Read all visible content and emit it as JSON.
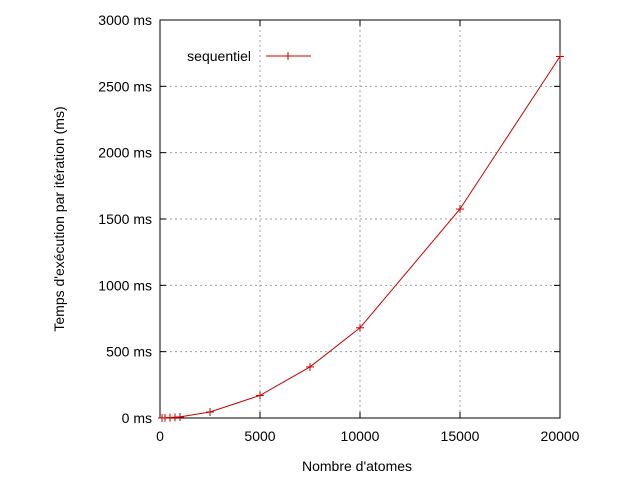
{
  "chart_data": {
    "type": "line",
    "title": "",
    "xlabel": "Nombre d'atomes",
    "ylabel": "Temps d'exécution par itération (ms)",
    "xlim": [
      0,
      20000
    ],
    "ylim": [
      0,
      3000
    ],
    "x_ticks": [
      0,
      5000,
      10000,
      15000,
      20000
    ],
    "x_tick_labels": [
      "0",
      "5000",
      "10000",
      "15000",
      "20000"
    ],
    "y_ticks": [
      0,
      500,
      1000,
      1500,
      2000,
      2500,
      3000
    ],
    "y_tick_labels": [
      "0 ms",
      "500 ms",
      "1000 ms",
      "1500 ms",
      "2000 ms",
      "2500 ms",
      "3000 ms"
    ],
    "grid": true,
    "legend_position": "top-left",
    "series": [
      {
        "name": "sequentiel",
        "color": "#cc0000",
        "marker": "plus",
        "x": [
          100,
          250,
          500,
          750,
          1000,
          2500,
          5000,
          7500,
          10000,
          15000,
          20000
        ],
        "y": [
          0,
          1,
          3,
          5,
          8,
          45,
          170,
          385,
          680,
          1575,
          2725
        ]
      }
    ]
  }
}
